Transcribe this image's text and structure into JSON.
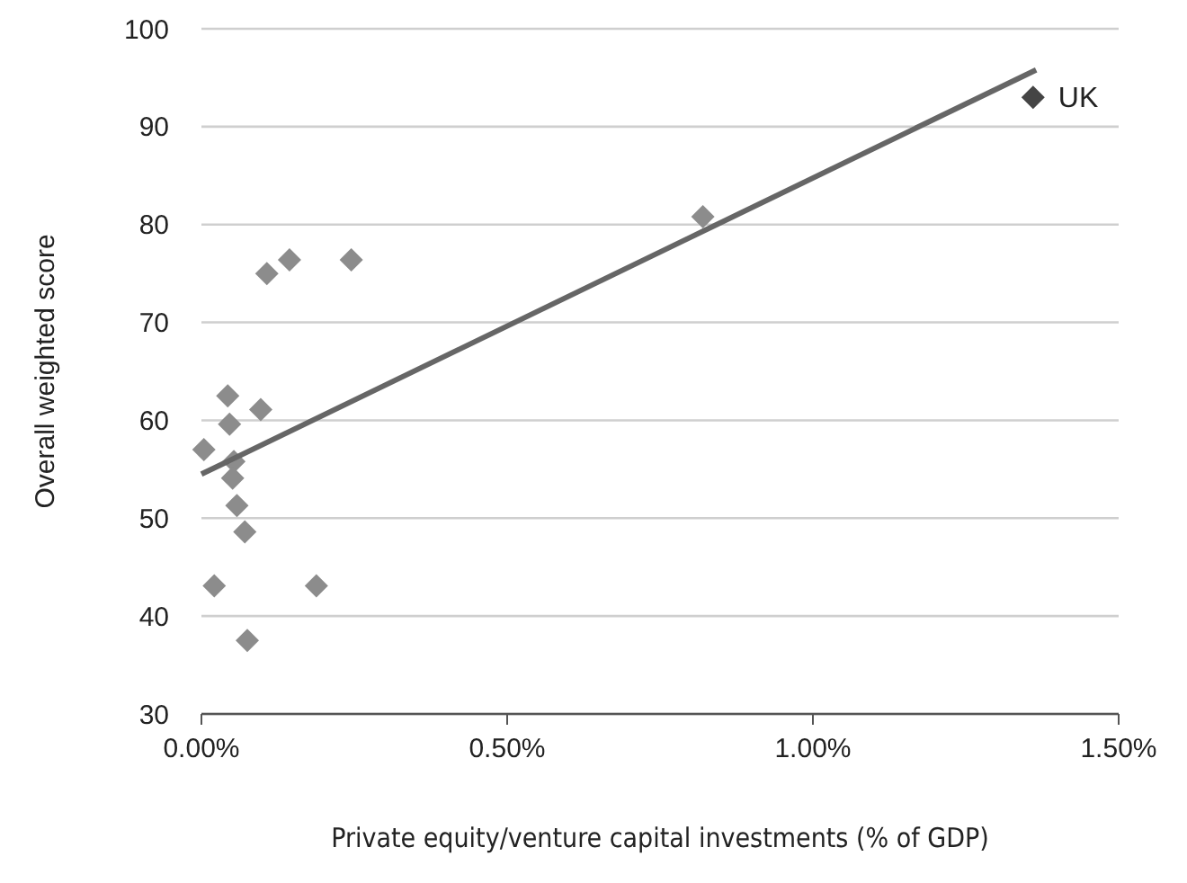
{
  "chart_data": {
    "type": "scatter",
    "xlabel": "Private equity/venture capital investments (% of GDP)",
    "ylabel": "Overall weighted score",
    "xlim": [
      0,
      1.5
    ],
    "xticks": [
      {
        "value": 0,
        "label": "0.00%"
      },
      {
        "value": 0.5,
        "label": "0.50%"
      },
      {
        "value": 1,
        "label": "1.00%"
      },
      {
        "value": 1.5,
        "label": "1.50%"
      }
    ],
    "ylim": [
      30,
      100
    ],
    "yticks": [
      30,
      40,
      50,
      60,
      70,
      80,
      90,
      100
    ],
    "grid": "y",
    "marker": "diamond",
    "series": [
      {
        "color": "#8c8c8c",
        "x": [
          0.004,
          0.043,
          0.046,
          0.097,
          0.053,
          0.051,
          0.058,
          0.071,
          0.021,
          0.075,
          0.188,
          0.107,
          0.144,
          0.245,
          0.82
        ],
        "values": [
          57.0,
          62.5,
          59.6,
          61.1,
          55.8,
          54.1,
          51.3,
          48.6,
          43.1,
          37.5,
          43.1,
          75.0,
          76.4,
          76.4,
          80.8
        ]
      },
      {
        "color": "#454545",
        "x": [
          1.36
        ],
        "values": [
          93.0
        ]
      },
      {
        "type": "line",
        "color": "#666666",
        "marker": "none",
        "x": [
          0,
          1.365
        ],
        "values": [
          54.5,
          95.8
        ]
      }
    ],
    "annotations": [
      {
        "text": "UK",
        "x": 1.36,
        "y": 93.0
      }
    ]
  }
}
